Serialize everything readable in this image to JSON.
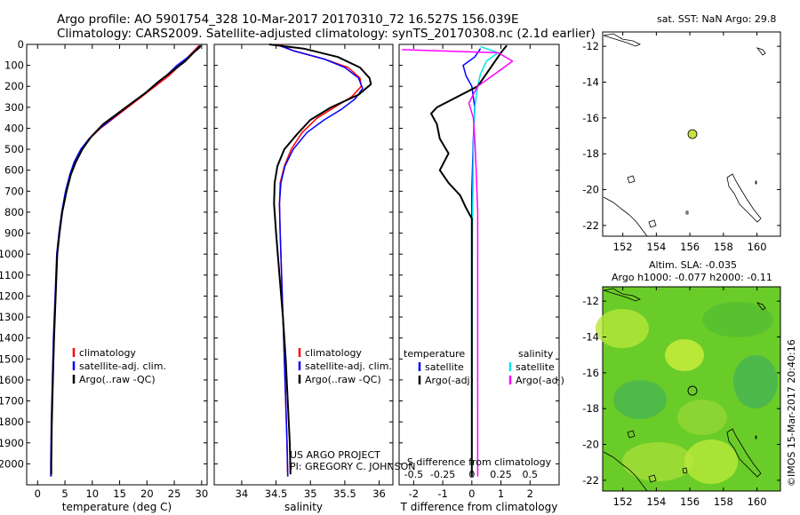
{
  "header": {
    "line1": "Argo profile: AO 5901754_328 10-Mar-2017 20170310_72 16.527S 156.039E",
    "line2": "Climatology: CARS2009. Satellite-adjusted climatology: synTS_20170308.nc (2.1d earlier)"
  },
  "credits": {
    "project": "US ARGO PROJECT",
    "pi": "PI: GREGORY C. JOHNSON"
  },
  "map_sst": {
    "title": "sat. SST: NaN Argo: 29.8",
    "y_ticks": [
      "-12",
      "-14",
      "-16",
      "-18",
      "-20",
      "-22"
    ],
    "x_ticks": [
      "152",
      "154",
      "156",
      "158",
      "160"
    ],
    "float_color": "#c8e040"
  },
  "map_sla": {
    "title_line1": "Altim. SLA: -0.035",
    "title_line2": "Argo h1000: -0.077 h2000: -0.11",
    "y_ticks": [
      "-12",
      "-14",
      "-16",
      "-18",
      "-20",
      "-22"
    ],
    "x_ticks": [
      "152",
      "154",
      "156",
      "158",
      "160"
    ],
    "field_color": "#66cc22"
  },
  "side_label": "©IMOS 15-Mar-2017 20:40:16",
  "chart_data": [
    {
      "type": "line",
      "name": "temperature",
      "xlabel": "temperature (deg C)",
      "ylabel": "",
      "xlim": [
        -2,
        31
      ],
      "ylim": [
        2100,
        0
      ],
      "x_ticks": [
        0,
        5,
        10,
        15,
        20,
        25,
        30
      ],
      "y_ticks": [
        0,
        100,
        200,
        300,
        400,
        500,
        600,
        700,
        800,
        900,
        1000,
        1100,
        1200,
        1300,
        1400,
        1500,
        1600,
        1700,
        1800,
        1900,
        2000
      ],
      "legend": [
        "climatology",
        "satellite-adj. clim.",
        "Argo(..raw -QC)"
      ],
      "legend_colors": [
        "#ff0000",
        "#0000ff",
        "#000000"
      ],
      "series": [
        {
          "name": "climatology",
          "color": "#ff0000",
          "points": [
            [
              29.5,
              5
            ],
            [
              29.0,
              20
            ],
            [
              27.5,
              60
            ],
            [
              26.0,
              100
            ],
            [
              24.0,
              150
            ],
            [
              21.5,
              200
            ],
            [
              19.0,
              250
            ],
            [
              16.5,
              300
            ],
            [
              14.0,
              350
            ],
            [
              11.5,
              400
            ],
            [
              9.5,
              450
            ],
            [
              8.0,
              500
            ],
            [
              6.8,
              560
            ],
            [
              6.0,
              620
            ],
            [
              5.2,
              700
            ],
            [
              4.5,
              800
            ],
            [
              4.0,
              900
            ],
            [
              3.6,
              1000
            ],
            [
              3.3,
              1200
            ],
            [
              3.0,
              1400
            ],
            [
              2.8,
              1600
            ],
            [
              2.6,
              1800
            ],
            [
              2.5,
              2000
            ],
            [
              2.5,
              2060
            ]
          ]
        },
        {
          "name": "satellite-adj. clim.",
          "color": "#0000ff",
          "points": [
            [
              29.8,
              5
            ],
            [
              29.2,
              20
            ],
            [
              27.8,
              55
            ],
            [
              25.5,
              100
            ],
            [
              23.5,
              150
            ],
            [
              21.2,
              200
            ],
            [
              18.8,
              250
            ],
            [
              16.2,
              300
            ],
            [
              13.8,
              350
            ],
            [
              11.4,
              400
            ],
            [
              9.4,
              450
            ],
            [
              7.9,
              500
            ],
            [
              6.7,
              560
            ],
            [
              5.9,
              620
            ],
            [
              5.1,
              700
            ],
            [
              4.4,
              800
            ],
            [
              3.9,
              900
            ],
            [
              3.5,
              1000
            ],
            [
              3.2,
              1200
            ],
            [
              2.9,
              1400
            ],
            [
              2.7,
              1600
            ],
            [
              2.5,
              1800
            ],
            [
              2.4,
              2000
            ],
            [
              2.4,
              2060
            ]
          ]
        },
        {
          "name": "Argo(..raw -QC)",
          "color": "#000000",
          "points": [
            [
              29.8,
              5
            ],
            [
              29.6,
              15
            ],
            [
              28.5,
              40
            ],
            [
              27.0,
              80
            ],
            [
              24.5,
              130
            ],
            [
              22.0,
              180
            ],
            [
              19.8,
              230
            ],
            [
              17.2,
              280
            ],
            [
              14.6,
              330
            ],
            [
              12.0,
              380
            ],
            [
              9.8,
              440
            ],
            [
              8.2,
              500
            ],
            [
              7.0,
              560
            ],
            [
              6.1,
              620
            ],
            [
              5.3,
              700
            ],
            [
              4.5,
              800
            ],
            [
              4.0,
              900
            ],
            [
              3.6,
              1000
            ],
            [
              3.3,
              1200
            ],
            [
              3.0,
              1400
            ],
            [
              2.8,
              1600
            ],
            [
              2.6,
              1800
            ],
            [
              2.5,
              2000
            ],
            [
              2.5,
              2050
            ]
          ]
        }
      ]
    },
    {
      "type": "line",
      "name": "salinity",
      "xlabel": "salinity",
      "xlim": [
        33.6,
        36.2
      ],
      "ylim": [
        2100,
        0
      ],
      "x_ticks": [
        34,
        34.5,
        35,
        35.5,
        36
      ],
      "legend": [
        "climatology",
        "satellite-adj. clim.",
        "Argo(..raw -QC)"
      ],
      "legend_colors": [
        "#ff0000",
        "#0000ff",
        "#000000"
      ],
      "series": [
        {
          "name": "climatology",
          "color": "#ff0000",
          "points": [
            [
              34.55,
              0
            ],
            [
              34.75,
              30
            ],
            [
              35.2,
              70
            ],
            [
              35.55,
              110
            ],
            [
              35.72,
              160
            ],
            [
              35.74,
              200
            ],
            [
              35.6,
              250
            ],
            [
              35.35,
              300
            ],
            [
              35.1,
              350
            ],
            [
              34.88,
              420
            ],
            [
              34.72,
              500
            ],
            [
              34.62,
              580
            ],
            [
              34.56,
              660
            ],
            [
              34.55,
              760
            ],
            [
              34.56,
              900
            ],
            [
              34.58,
              1100
            ],
            [
              34.6,
              1300
            ],
            [
              34.62,
              1500
            ],
            [
              34.64,
              1700
            ],
            [
              34.66,
              1900
            ],
            [
              34.67,
              2060
            ]
          ]
        },
        {
          "name": "satellite-adj. clim.",
          "color": "#0000ff",
          "points": [
            [
              34.5,
              0
            ],
            [
              34.75,
              30
            ],
            [
              35.2,
              70
            ],
            [
              35.5,
              110
            ],
            [
              35.7,
              160
            ],
            [
              35.76,
              210
            ],
            [
              35.65,
              260
            ],
            [
              35.45,
              310
            ],
            [
              35.2,
              360
            ],
            [
              34.95,
              420
            ],
            [
              34.75,
              500
            ],
            [
              34.63,
              580
            ],
            [
              34.57,
              660
            ],
            [
              34.55,
              760
            ],
            [
              34.56,
              900
            ],
            [
              34.58,
              1100
            ],
            [
              34.6,
              1300
            ],
            [
              34.62,
              1500
            ],
            [
              34.64,
              1700
            ],
            [
              34.66,
              1900
            ],
            [
              34.67,
              2060
            ]
          ]
        },
        {
          "name": "Argo(..raw -QC)",
          "color": "#000000",
          "points": [
            [
              34.4,
              0
            ],
            [
              34.9,
              20
            ],
            [
              35.4,
              60
            ],
            [
              35.72,
              110
            ],
            [
              35.86,
              160
            ],
            [
              35.88,
              190
            ],
            [
              35.7,
              240
            ],
            [
              35.3,
              300
            ],
            [
              35.0,
              360
            ],
            [
              34.8,
              430
            ],
            [
              34.62,
              500
            ],
            [
              34.52,
              580
            ],
            [
              34.48,
              660
            ],
            [
              34.47,
              760
            ],
            [
              34.5,
              900
            ],
            [
              34.55,
              1100
            ],
            [
              34.6,
              1300
            ],
            [
              34.64,
              1500
            ],
            [
              34.67,
              1700
            ],
            [
              34.7,
              1900
            ],
            [
              34.71,
              2050
            ]
          ]
        }
      ]
    },
    {
      "type": "line",
      "name": "difference",
      "xlabel": "T difference from climatology",
      "xlabel_top": "S difference from climatology",
      "xlim": [
        -2.5,
        3.0
      ],
      "ylim": [
        2100,
        0
      ],
      "x_ticks": [
        -2,
        -1,
        0,
        1,
        2
      ],
      "x_ticks_s": [
        "-0.5",
        "-0.25",
        "0",
        "0.25",
        "0.5"
      ],
      "legend_t_title": "temperature",
      "legend_s_title": "salinity",
      "legend_t": [
        "satellite",
        "Argo(-adj)"
      ],
      "legend_s": [
        "satellite",
        "Argo(-adj)"
      ],
      "legend_t_colors": [
        "#0000ff",
        "#000000"
      ],
      "legend_s_colors": [
        "#00e5e5",
        "#ff00ff"
      ],
      "series": [
        {
          "name": "T satellite",
          "color": "#0000ff",
          "points": [
            [
              0.3,
              20
            ],
            [
              0.1,
              60
            ],
            [
              -0.3,
              100
            ],
            [
              -0.2,
              150
            ],
            [
              0.0,
              200
            ],
            [
              0.1,
              300
            ],
            [
              0.05,
              450
            ],
            [
              0.0,
              700
            ],
            [
              0.0,
              1200
            ],
            [
              0.0,
              2060
            ]
          ]
        },
        {
          "name": "S satellite",
          "color": "#00e5e5",
          "points": [
            [
              0.3,
              10
            ],
            [
              0.9,
              40
            ],
            [
              0.5,
              80
            ],
            [
              0.3,
              140
            ],
            [
              0.2,
              200
            ],
            [
              0.1,
              300
            ],
            [
              0.05,
              500
            ],
            [
              0.02,
              900
            ],
            [
              0.0,
              2060
            ]
          ]
        },
        {
          "name": "T Argo(-adj)",
          "color": "#000000",
          "points": [
            [
              1.2,
              5
            ],
            [
              1.0,
              40
            ],
            [
              0.6,
              120
            ],
            [
              0.2,
              200
            ],
            [
              -1.2,
              300
            ],
            [
              -1.4,
              330
            ],
            [
              -1.2,
              380
            ],
            [
              -1.1,
              450
            ],
            [
              -0.8,
              520
            ],
            [
              -1.1,
              600
            ],
            [
              -0.8,
              660
            ],
            [
              -0.4,
              720
            ],
            [
              -0.2,
              780
            ],
            [
              0.0,
              830
            ],
            [
              0.0,
              1000
            ],
            [
              0.0,
              2060
            ]
          ]
        },
        {
          "name": "S Argo(-adj)",
          "color": "#ff00ff",
          "points": [
            [
              -2.4,
              25
            ],
            [
              0.9,
              40
            ],
            [
              1.4,
              80
            ],
            [
              0.8,
              140
            ],
            [
              0.2,
              200
            ],
            [
              -0.1,
              280
            ],
            [
              0.05,
              350
            ],
            [
              0.1,
              450
            ],
            [
              0.15,
              600
            ],
            [
              0.2,
              800
            ],
            [
              0.2,
              1000
            ],
            [
              0.2,
              1500
            ],
            [
              0.2,
              2060
            ]
          ]
        }
      ]
    }
  ]
}
